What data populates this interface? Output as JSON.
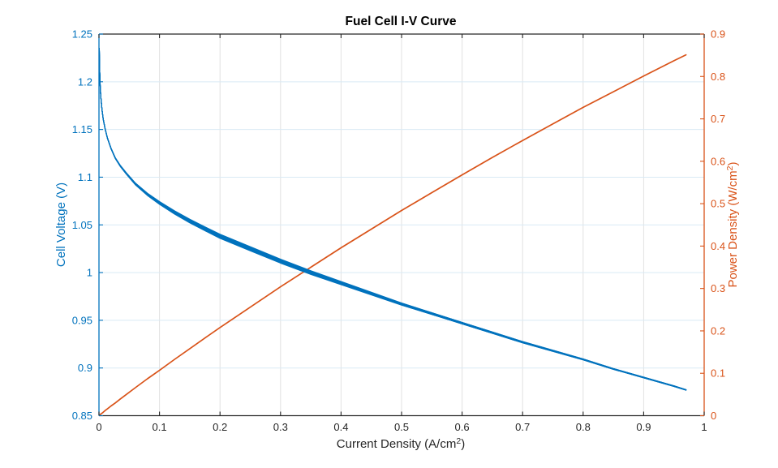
{
  "chart_data": {
    "type": "line",
    "title": "Fuel Cell I-V Curve",
    "xlabel": {
      "pre": "Current Density (A/cm",
      "sup": "2",
      "post": ")"
    },
    "ylabel_left": "Cell Voltage (V)",
    "ylabel_right": {
      "pre": "Power Density (W/cm",
      "sup": "2",
      "post": ")"
    },
    "xlim": [
      0,
      1
    ],
    "ylim_left": [
      0.85,
      1.25
    ],
    "ylim_right": [
      0,
      0.9
    ],
    "x_ticks": [
      0,
      0.1,
      0.2,
      0.3,
      0.4,
      0.5,
      0.6,
      0.7,
      0.8,
      0.9,
      1
    ],
    "y_left_ticks": [
      0.85,
      0.9,
      0.95,
      1,
      1.05,
      1.1,
      1.15,
      1.2,
      1.25
    ],
    "y_right_ticks": [
      0,
      0.1,
      0.2,
      0.3,
      0.4,
      0.5,
      0.6,
      0.7,
      0.8,
      0.9
    ],
    "grid": true,
    "legend": "none",
    "colors": {
      "voltage_series": "#0072BD",
      "power_series": "#D95319",
      "axis": "#262626",
      "grid_vertical": "#e2e2e2",
      "grid_horizontal": "#d9eaf5",
      "title": "#000000"
    },
    "x": [
      0.0005,
      0.001,
      0.002,
      0.003,
      0.005,
      0.007,
      0.01,
      0.014,
      0.02,
      0.027,
      0.035,
      0.045,
      0.06,
      0.08,
      0.1,
      0.125,
      0.15,
      0.175,
      0.2,
      0.25,
      0.3,
      0.35,
      0.4,
      0.45,
      0.5,
      0.55,
      0.6,
      0.65,
      0.7,
      0.75,
      0.8,
      0.85,
      0.9,
      0.95,
      0.97
    ],
    "series": [
      {
        "name": "Cell Voltage",
        "axis": "left",
        "values": [
          1.235,
          1.216,
          1.196,
          1.185,
          1.171,
          1.161,
          1.151,
          1.141,
          1.13,
          1.12,
          1.112,
          1.104,
          1.093,
          1.082,
          1.073,
          1.063,
          1.054,
          1.046,
          1.038,
          1.025,
          1.012,
          1.0,
          0.989,
          0.978,
          0.967,
          0.957,
          0.947,
          0.937,
          0.927,
          0.918,
          0.909,
          0.899,
          0.89,
          0.881,
          0.877
        ]
      },
      {
        "name": "Power Density",
        "axis": "right",
        "values": [
          0.001,
          0.001,
          0.002,
          0.004,
          0.006,
          0.008,
          0.012,
          0.016,
          0.023,
          0.03,
          0.039,
          0.05,
          0.066,
          0.087,
          0.107,
          0.133,
          0.158,
          0.183,
          0.208,
          0.256,
          0.304,
          0.35,
          0.396,
          0.44,
          0.484,
          0.526,
          0.568,
          0.609,
          0.649,
          0.688,
          0.727,
          0.764,
          0.801,
          0.837,
          0.851
        ]
      }
    ],
    "voltage_sweep_bundle": {
      "note": "multiple overlapping I-V sweeps spread around the mean voltage curve, converging at both ends",
      "offsets": [
        [
          0.0,
          0.0
        ],
        [
          0.0006,
          0.0003
        ],
        [
          -0.0006,
          -0.0003
        ],
        [
          0.0011,
          -0.0004
        ],
        [
          -0.0011,
          0.0004
        ],
        [
          0.0016,
          0.0006
        ],
        [
          -0.0016,
          -0.0006
        ],
        [
          0.0008,
          -0.0008
        ],
        [
          -0.0008,
          0.0008
        ],
        [
          0.0013,
          0.0002
        ],
        [
          -0.0013,
          -0.0002
        ]
      ]
    }
  }
}
